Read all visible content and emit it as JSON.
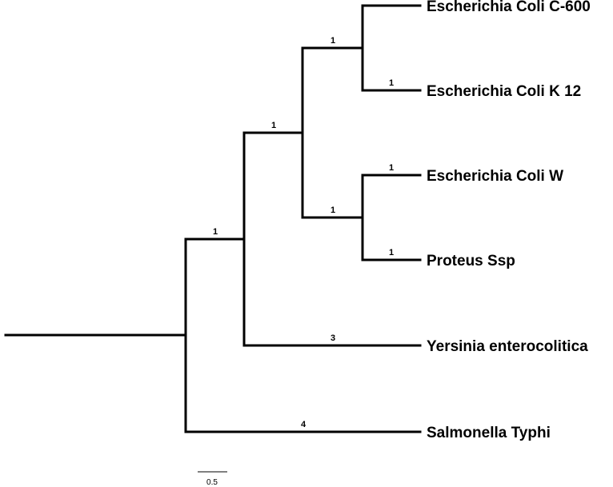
{
  "tree": {
    "leaves": [
      {
        "id": "ecoli-c600",
        "label": "Escherichia Coli C-600",
        "branch_length": ""
      },
      {
        "id": "ecoli-k12",
        "label": "Escherichia Coli K 12",
        "branch_length": "1"
      },
      {
        "id": "ecoli-w",
        "label": "Escherichia Coli W",
        "branch_length": "1"
      },
      {
        "id": "proteus",
        "label": "Proteus Ssp",
        "branch_length": "1"
      },
      {
        "id": "yersinia",
        "label": "Yersinia enterocolitica",
        "branch_length": "3"
      },
      {
        "id": "salmonella",
        "label": "Salmonella Typhi",
        "branch_length": "4"
      }
    ],
    "internal_nodes": [
      {
        "id": "ecoli-c600-k12-clade",
        "branch_length": "1"
      },
      {
        "id": "ecoli-w-proteus-clade",
        "branch_length": "1"
      },
      {
        "id": "four-taxa-clade",
        "branch_length": "1"
      },
      {
        "id": "five-taxa-clade",
        "branch_length": "1"
      }
    ]
  },
  "scale_bar": {
    "label": "0.5"
  },
  "colors": {
    "branch": "#000000",
    "background": "#ffffff"
  }
}
